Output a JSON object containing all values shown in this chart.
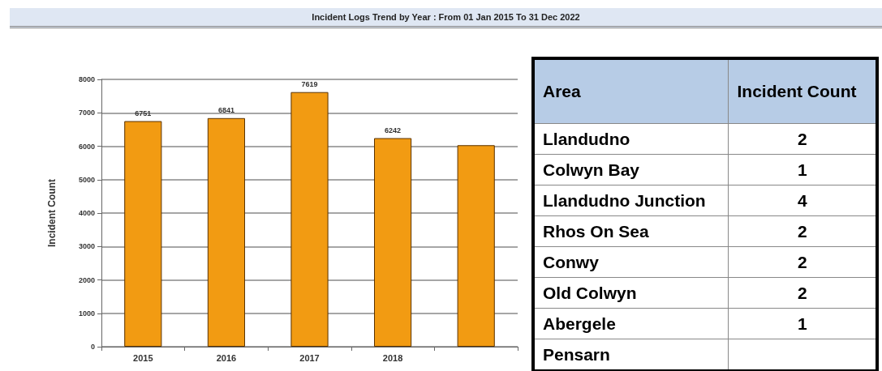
{
  "chart_data": [
    {
      "type": "bar",
      "title": "Incident Logs Trend by Year :  From 01 Jan 2015 To 31 Dec 2022",
      "ylabel": "Incident Count",
      "categories": [
        "2015",
        "2016",
        "2017",
        "2018",
        null
      ],
      "values": [
        6751,
        6841,
        7619,
        6242,
        6030
      ],
      "value_labels": [
        "6751",
        "6841",
        "7619",
        "6242",
        null
      ],
      "color": "#f29b12",
      "ylim": [
        0,
        8000
      ],
      "yticks": [
        0,
        1000,
        2000,
        3000,
        4000,
        5000,
        6000,
        7000,
        8000
      ],
      "grid": "y"
    },
    {
      "type": "other",
      "xlabel": "Area",
      "ylabel": "Incident Count",
      "categories": [
        "Llandudno",
        "Colwyn Bay",
        "Llandudno Junction",
        "Rhos On Sea",
        "Conwy",
        "Old Colwyn",
        "Abergele",
        "Pensarn"
      ],
      "value_labels": [
        "2",
        "1",
        "4",
        "2",
        "2",
        "2",
        "1",
        null
      ]
    }
  ]
}
